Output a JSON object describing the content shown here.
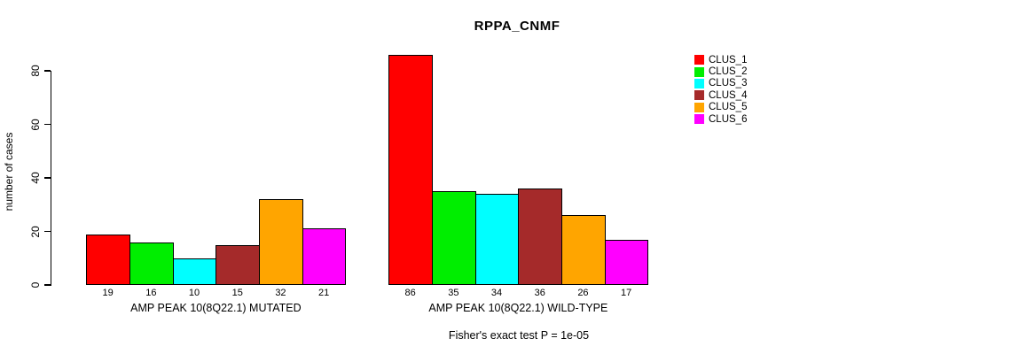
{
  "chart_data": {
    "type": "bar",
    "title": "RPPA_CNMF",
    "ylabel": "number of cases",
    "xlabel": "",
    "ylim": [
      0,
      86
    ],
    "yticks": [
      0,
      20,
      40,
      60,
      80
    ],
    "grid": false,
    "legend_position": "right",
    "categories": [
      "AMP PEAK 10(8Q22.1) MUTATED",
      "AMP PEAK 10(8Q22.1) WILD-TYPE"
    ],
    "series": [
      {
        "name": "CLUS_1",
        "color": "#FF0000",
        "values": [
          19,
          86
        ]
      },
      {
        "name": "CLUS_2",
        "color": "#00EE00",
        "values": [
          16,
          35
        ]
      },
      {
        "name": "CLUS_3",
        "color": "#00FFFF",
        "values": [
          10,
          34
        ]
      },
      {
        "name": "CLUS_4",
        "color": "#A52A2A",
        "values": [
          15,
          36
        ]
      },
      {
        "name": "CLUS_5",
        "color": "#FFA500",
        "values": [
          32,
          26
        ]
      },
      {
        "name": "CLUS_6",
        "color": "#FF00FF",
        "values": [
          21,
          17
        ]
      }
    ],
    "annotation": "Fisher's exact test P = 1e-05"
  }
}
